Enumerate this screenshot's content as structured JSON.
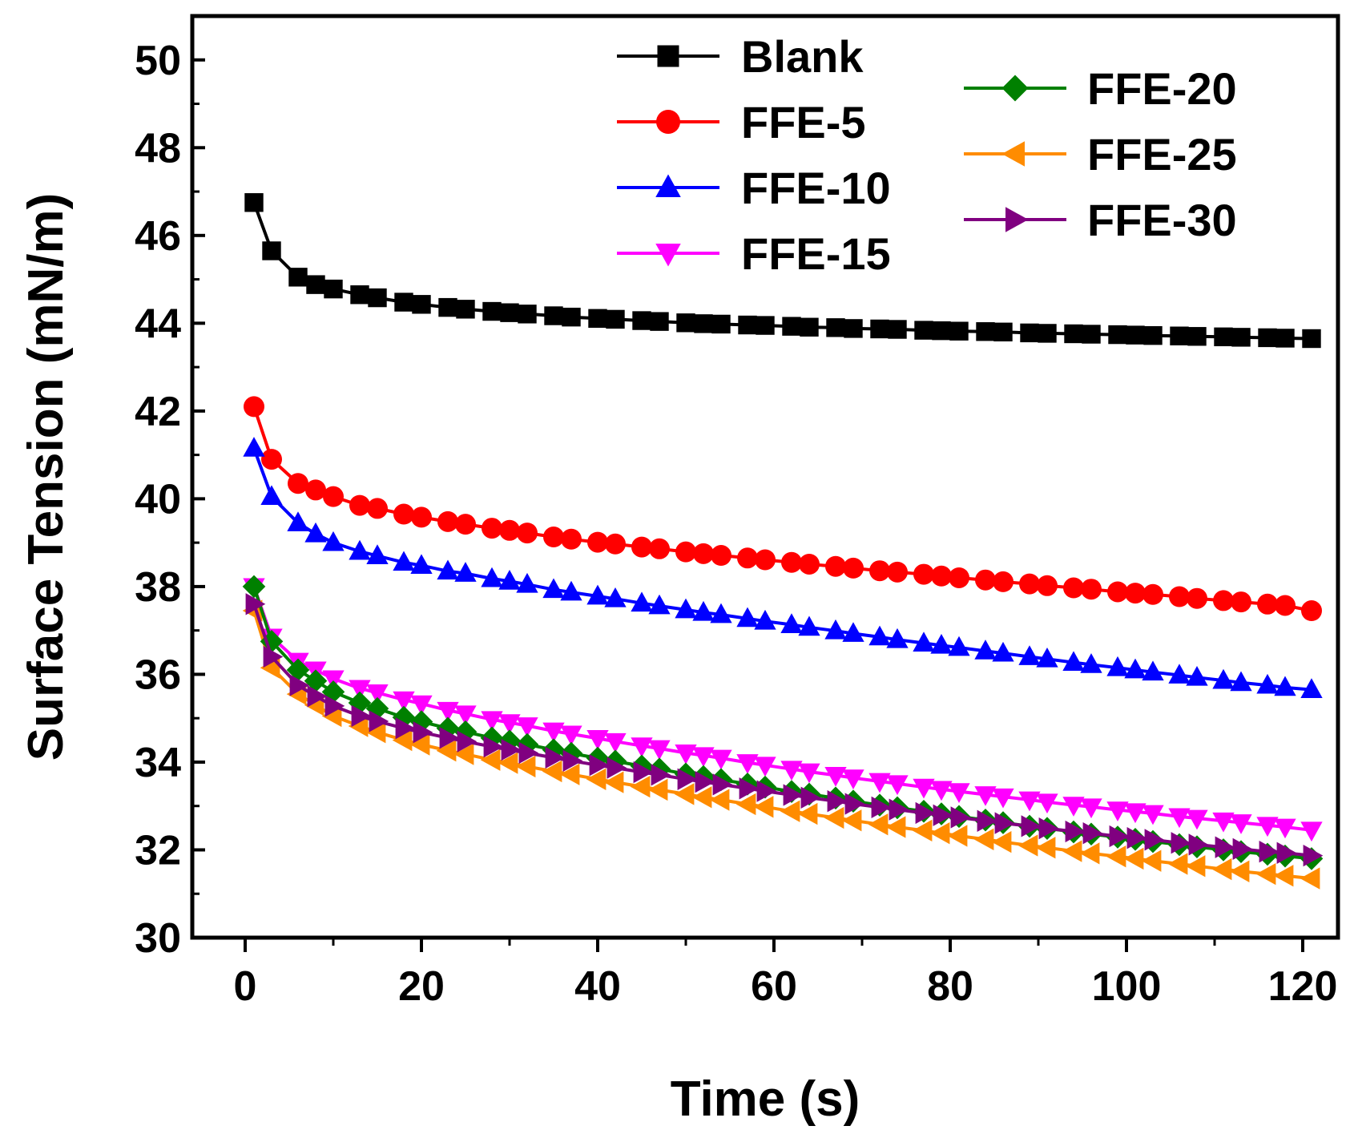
{
  "chart_data": {
    "type": "line",
    "xlabel": "Time (s)",
    "ylabel": "Surface Tension (mN/m)",
    "xlim": [
      -6,
      124
    ],
    "ylim": [
      30,
      51
    ],
    "xticks": [
      0,
      20,
      40,
      60,
      80,
      100,
      120
    ],
    "yticks": [
      30,
      32,
      34,
      36,
      38,
      40,
      42,
      44,
      46,
      48,
      50
    ],
    "x": [
      1,
      3,
      6,
      8,
      10,
      13,
      15,
      18,
      20,
      23,
      25,
      28,
      30,
      32,
      35,
      37,
      40,
      42,
      45,
      47,
      50,
      52,
      54,
      57,
      59,
      62,
      64,
      67,
      69,
      72,
      74,
      77,
      79,
      81,
      84,
      86,
      89,
      91,
      94,
      96,
      99,
      101,
      103,
      106,
      108,
      111,
      113,
      116,
      118,
      121
    ],
    "series": [
      {
        "name": "Blank",
        "color": "#000000",
        "marker": "square",
        "values": [
          46.75,
          45.65,
          45.05,
          44.88,
          44.78,
          44.65,
          44.58,
          44.48,
          44.43,
          44.36,
          44.32,
          44.27,
          44.24,
          44.21,
          44.17,
          44.14,
          44.11,
          44.09,
          44.06,
          44.04,
          44.01,
          43.99,
          43.98,
          43.96,
          43.95,
          43.93,
          43.91,
          43.9,
          43.88,
          43.87,
          43.86,
          43.84,
          43.83,
          43.82,
          43.81,
          43.8,
          43.78,
          43.77,
          43.76,
          43.75,
          43.74,
          43.73,
          43.72,
          43.71,
          43.7,
          43.69,
          43.68,
          43.67,
          43.66,
          43.65
        ]
      },
      {
        "name": "FFE-5",
        "color": "#ff0000",
        "marker": "circle",
        "values": [
          42.1,
          40.9,
          40.35,
          40.2,
          40.05,
          39.85,
          39.78,
          39.65,
          39.58,
          39.48,
          39.42,
          39.33,
          39.28,
          39.22,
          39.13,
          39.08,
          39.01,
          38.97,
          38.9,
          38.86,
          38.79,
          38.75,
          38.71,
          38.65,
          38.61,
          38.55,
          38.51,
          38.46,
          38.42,
          38.36,
          38.33,
          38.28,
          38.24,
          38.2,
          38.15,
          38.11,
          38.06,
          38.02,
          37.97,
          37.94,
          37.88,
          37.85,
          37.82,
          37.77,
          37.73,
          37.68,
          37.65,
          37.6,
          37.57,
          37.45
        ]
      },
      {
        "name": "FFE-10",
        "color": "#0000ff",
        "marker": "triangle-up",
        "values": [
          41.15,
          40.05,
          39.45,
          39.2,
          39.0,
          38.8,
          38.7,
          38.55,
          38.48,
          38.35,
          38.3,
          38.18,
          38.12,
          38.05,
          37.93,
          37.87,
          37.78,
          37.72,
          37.62,
          37.56,
          37.47,
          37.41,
          37.36,
          37.27,
          37.21,
          37.13,
          37.07,
          36.99,
          36.93,
          36.85,
          36.79,
          36.71,
          36.66,
          36.61,
          36.53,
          36.48,
          36.4,
          36.35,
          36.27,
          36.22,
          36.15,
          36.1,
          36.05,
          35.98,
          35.93,
          35.86,
          35.81,
          35.75,
          35.7,
          35.65
        ]
      },
      {
        "name": "FFE-15",
        "color": "#ff00ff",
        "marker": "triangle-down",
        "values": [
          38.0,
          36.85,
          36.3,
          36.1,
          35.9,
          35.68,
          35.58,
          35.42,
          35.33,
          35.18,
          35.1,
          34.97,
          34.9,
          34.83,
          34.71,
          34.64,
          34.54,
          34.47,
          34.37,
          34.31,
          34.21,
          34.15,
          34.09,
          33.99,
          33.93,
          33.84,
          33.78,
          33.7,
          33.64,
          33.56,
          33.51,
          33.43,
          33.38,
          33.33,
          33.26,
          33.21,
          33.14,
          33.09,
          33.02,
          32.98,
          32.91,
          32.87,
          32.83,
          32.76,
          32.72,
          32.66,
          32.62,
          32.56,
          32.52,
          32.45
        ]
      },
      {
        "name": "FFE-20",
        "color": "#008000",
        "marker": "diamond",
        "values": [
          38.0,
          36.75,
          36.1,
          35.85,
          35.6,
          35.35,
          35.22,
          35.02,
          34.92,
          34.77,
          34.69,
          34.55,
          34.48,
          34.4,
          34.28,
          34.2,
          34.09,
          34.02,
          33.91,
          33.84,
          33.73,
          33.67,
          33.6,
          33.5,
          33.43,
          33.33,
          33.27,
          33.18,
          33.11,
          33.02,
          32.96,
          32.88,
          32.82,
          32.76,
          32.68,
          32.62,
          32.54,
          32.49,
          32.41,
          32.36,
          32.29,
          32.24,
          32.19,
          32.12,
          32.07,
          32.0,
          31.96,
          31.9,
          31.86,
          31.8
        ]
      },
      {
        "name": "FFE-25",
        "color": "#ff8c00",
        "marker": "triangle-left",
        "values": [
          37.45,
          36.15,
          35.55,
          35.3,
          35.05,
          34.82,
          34.68,
          34.5,
          34.4,
          34.26,
          34.18,
          34.05,
          33.98,
          33.9,
          33.79,
          33.72,
          33.61,
          33.54,
          33.44,
          33.37,
          33.27,
          33.2,
          33.14,
          33.04,
          32.98,
          32.88,
          32.82,
          32.73,
          32.67,
          32.58,
          32.52,
          32.44,
          32.38,
          32.32,
          32.24,
          32.18,
          32.1,
          32.05,
          31.97,
          31.92,
          31.85,
          31.8,
          31.75,
          31.68,
          31.63,
          31.56,
          31.51,
          31.45,
          31.41,
          31.35
        ]
      },
      {
        "name": "FFE-30",
        "color": "#800080",
        "marker": "triangle-right",
        "values": [
          37.6,
          36.4,
          35.75,
          35.5,
          35.28,
          35.05,
          34.93,
          34.77,
          34.68,
          34.55,
          34.47,
          34.35,
          34.28,
          34.21,
          34.1,
          34.03,
          33.93,
          33.87,
          33.77,
          33.71,
          33.61,
          33.55,
          33.49,
          33.4,
          33.34,
          33.25,
          33.19,
          33.11,
          33.05,
          32.97,
          32.92,
          32.84,
          32.79,
          32.74,
          32.66,
          32.61,
          32.54,
          32.49,
          32.42,
          32.38,
          32.31,
          32.27,
          32.23,
          32.16,
          32.12,
          32.06,
          32.02,
          31.96,
          31.93,
          31.87
        ]
      }
    ],
    "legend": {
      "placement": "top-right, two columns"
    }
  }
}
